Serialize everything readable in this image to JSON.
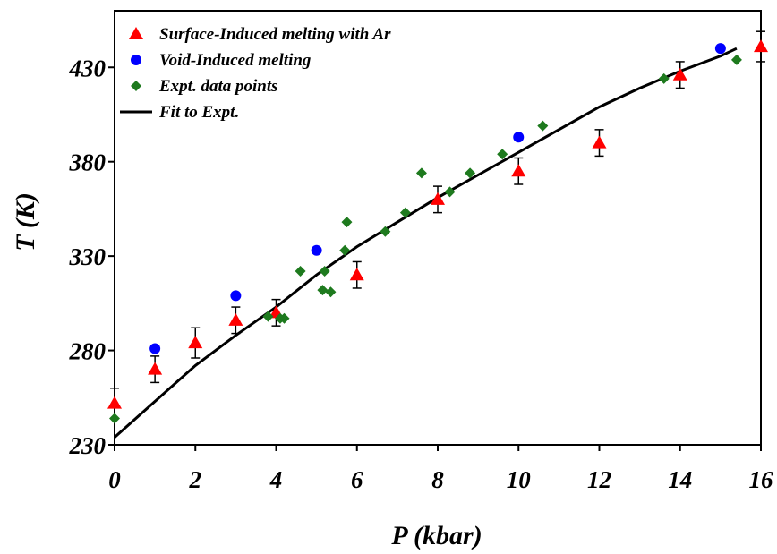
{
  "chart_data": {
    "type": "scatter",
    "title": "",
    "xlabel": "P (kbar)",
    "ylabel": "T (K)",
    "xlim": [
      0,
      16
    ],
    "ylim": [
      230,
      460
    ],
    "xticks": [
      "0",
      "2",
      "4",
      "6",
      "8",
      "10",
      "12",
      "14",
      "16"
    ],
    "yticks": [
      "230",
      "280",
      "330",
      "380",
      "430"
    ],
    "grid": false,
    "legend_position": "top-left",
    "series": [
      {
        "name": "Surface-Induced melting with Ar",
        "marker": "triangle",
        "color": "#ff0000",
        "points": [
          {
            "x": 0,
            "y": 252,
            "err": 8
          },
          {
            "x": 1,
            "y": 270,
            "err": 7
          },
          {
            "x": 2,
            "y": 284,
            "err": 8
          },
          {
            "x": 3,
            "y": 296,
            "err": 7
          },
          {
            "x": 4,
            "y": 300,
            "err": 7
          },
          {
            "x": 6,
            "y": 320,
            "err": 7
          },
          {
            "x": 8,
            "y": 360,
            "err": 7
          },
          {
            "x": 10,
            "y": 375,
            "err": 7
          },
          {
            "x": 12,
            "y": 390,
            "err": 7
          },
          {
            "x": 14,
            "y": 426,
            "err": 7
          },
          {
            "x": 16,
            "y": 441,
            "err": 8
          }
        ]
      },
      {
        "name": "Void-Induced melting",
        "marker": "circle",
        "color": "#0000ff",
        "points": [
          {
            "x": 1,
            "y": 281
          },
          {
            "x": 3,
            "y": 309
          },
          {
            "x": 5,
            "y": 333
          },
          {
            "x": 10,
            "y": 393
          },
          {
            "x": 15,
            "y": 440
          }
        ]
      },
      {
        "name": "Expt. data points",
        "marker": "diamond",
        "color": "#1e7a1e",
        "points": [
          {
            "x": 0,
            "y": 244
          },
          {
            "x": 3.8,
            "y": 298
          },
          {
            "x": 4.1,
            "y": 297
          },
          {
            "x": 4.2,
            "y": 297
          },
          {
            "x": 4.6,
            "y": 322
          },
          {
            "x": 5.15,
            "y": 312
          },
          {
            "x": 5.2,
            "y": 322
          },
          {
            "x": 5.35,
            "y": 311
          },
          {
            "x": 5.7,
            "y": 333
          },
          {
            "x": 5.75,
            "y": 348
          },
          {
            "x": 6.7,
            "y": 343
          },
          {
            "x": 7.2,
            "y": 353
          },
          {
            "x": 7.6,
            "y": 374
          },
          {
            "x": 8.3,
            "y": 364
          },
          {
            "x": 8.8,
            "y": 374
          },
          {
            "x": 9.6,
            "y": 384
          },
          {
            "x": 10.6,
            "y": 399
          },
          {
            "x": 13.6,
            "y": 424
          },
          {
            "x": 15.4,
            "y": 434
          }
        ]
      },
      {
        "name": "Fit to Expt.",
        "marker": "line",
        "color": "#000000",
        "points": [
          {
            "x": 0,
            "y": 234
          },
          {
            "x": 1,
            "y": 253
          },
          {
            "x": 2,
            "y": 272
          },
          {
            "x": 3,
            "y": 288
          },
          {
            "x": 4,
            "y": 303
          },
          {
            "x": 5,
            "y": 320
          },
          {
            "x": 6,
            "y": 335
          },
          {
            "x": 7,
            "y": 348
          },
          {
            "x": 8,
            "y": 361
          },
          {
            "x": 9,
            "y": 373
          },
          {
            "x": 10,
            "y": 385
          },
          {
            "x": 11,
            "y": 397
          },
          {
            "x": 12,
            "y": 409
          },
          {
            "x": 13,
            "y": 419
          },
          {
            "x": 14,
            "y": 428
          },
          {
            "x": 15,
            "y": 436
          },
          {
            "x": 15.4,
            "y": 440
          }
        ]
      }
    ]
  }
}
